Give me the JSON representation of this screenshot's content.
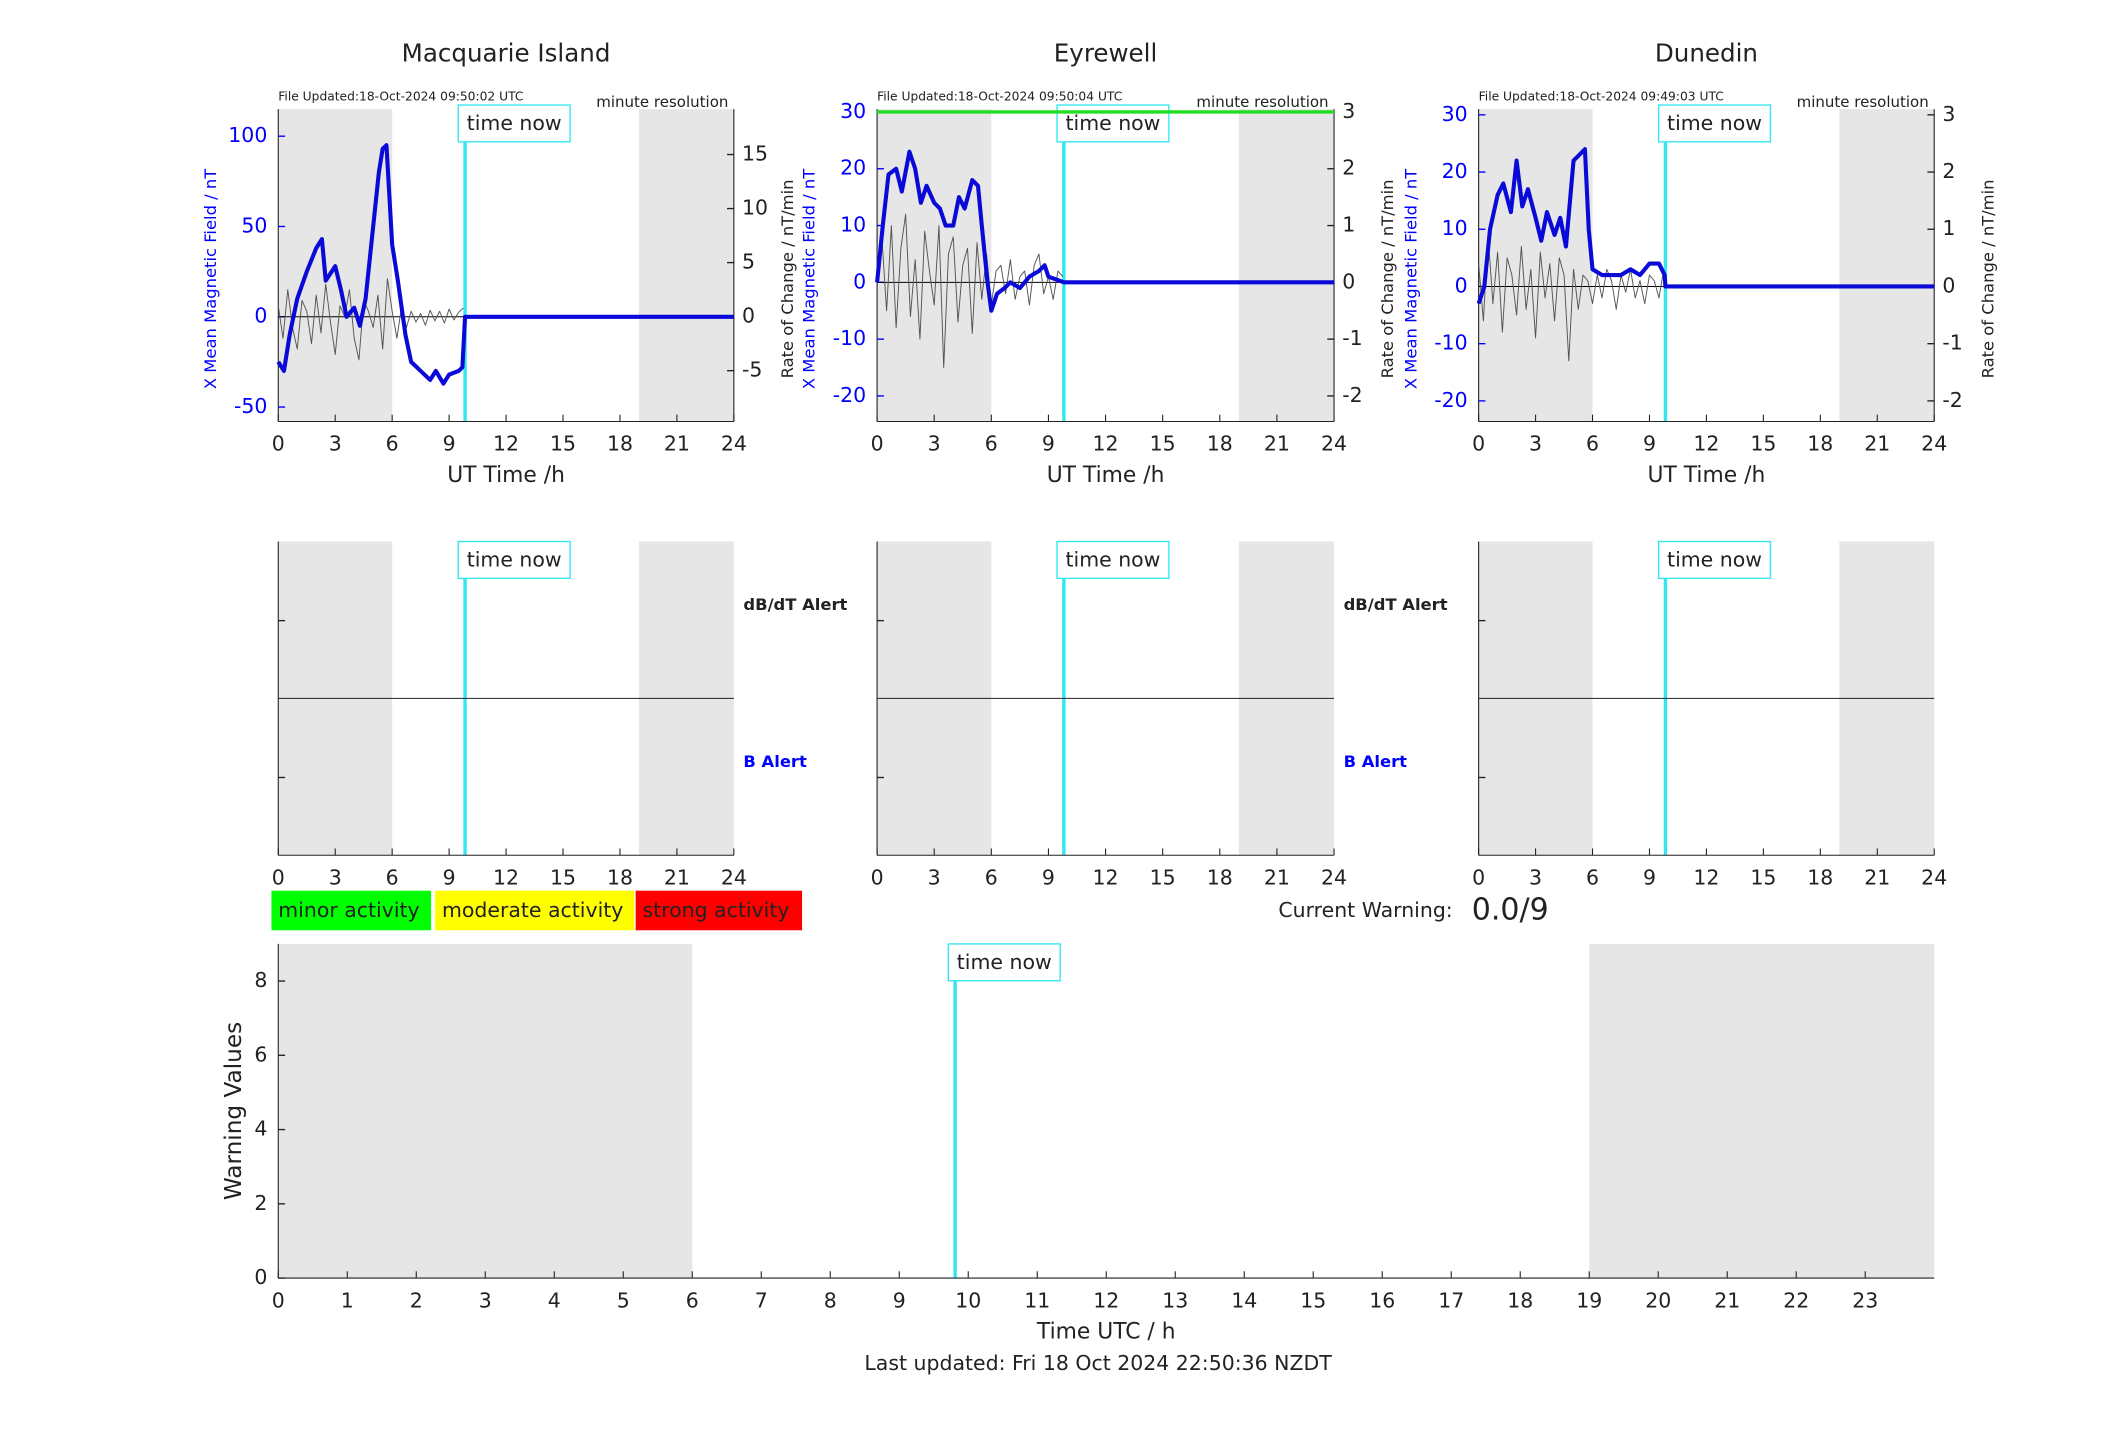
{
  "chart_data": [
    {
      "type": "line",
      "title": "Macquarie Island",
      "file_updated": "File Updated:18-Oct-2024 09:50:02 UTC",
      "resolution": "minute resolution",
      "time_now": 9.84,
      "time_now_label": "time now",
      "time_now_color": "#33e6f0",
      "shaded": [
        [
          0,
          6
        ],
        [
          19,
          24
        ]
      ],
      "shade_color": "#e6e6e6",
      "xlabel": "UT Time /h",
      "ylabel": "X Mean Magnetic Field / nT",
      "y2label": "Rate of Change / nT/min",
      "xlim": [
        0,
        24
      ],
      "xticks": [
        0,
        3,
        6,
        9,
        12,
        15,
        18,
        21,
        24
      ],
      "ylim": [
        -58,
        115
      ],
      "yticks": [
        -50,
        0,
        50,
        100
      ],
      "y_color": "#0000ff",
      "y2lim": [
        -9.7,
        19.2
      ],
      "y2ticks": [
        -5,
        0,
        5,
        10,
        15
      ],
      "series": [
        {
          "color": "#555555",
          "axis": "y2",
          "width": 0.7,
          "x": [
            0,
            0.25,
            0.5,
            0.75,
            1,
            1.25,
            1.5,
            1.75,
            2,
            2.25,
            2.5,
            2.75,
            3,
            3.25,
            3.5,
            3.75,
            4,
            4.25,
            4.5,
            4.75,
            5,
            5.25,
            5.5,
            5.75,
            6,
            6.25,
            6.5,
            6.75,
            7,
            7.25,
            7.5,
            7.75,
            8,
            8.25,
            8.5,
            8.75,
            9,
            9.25,
            9.5,
            9.75
          ],
          "values": [
            1,
            -2,
            2.5,
            -1,
            -3,
            1.5,
            0.5,
            -2.5,
            2,
            -1.5,
            3,
            -0.5,
            -3.5,
            1,
            0,
            2.5,
            -2,
            -4,
            1.5,
            0.5,
            -1,
            2,
            -3,
            3.5,
            0.5,
            -2,
            1,
            -1,
            0.5,
            -0.5,
            0.3,
            -0.8,
            0.6,
            -0.4,
            0.5,
            -0.6,
            0.7,
            -0.3,
            0.4,
            0.8
          ]
        },
        {
          "color": "#0a0ad8",
          "axis": "y",
          "width": 3,
          "x": [
            0,
            0.3,
            0.6,
            1,
            1.5,
            2,
            2.3,
            2.5,
            3,
            3.3,
            3.6,
            4,
            4.3,
            4.6,
            5,
            5.3,
            5.5,
            5.7,
            6,
            6.3,
            6.7,
            7,
            7.5,
            8,
            8.3,
            8.7,
            9,
            9.5,
            9.7,
            9.84,
            24
          ],
          "values": [
            -25,
            -30,
            -10,
            10,
            25,
            38,
            43,
            20,
            28,
            15,
            0,
            5,
            -5,
            10,
            50,
            80,
            93,
            95,
            40,
            20,
            -10,
            -25,
            -30,
            -35,
            -30,
            -37,
            -32,
            -30,
            -28,
            0,
            0
          ]
        }
      ]
    },
    {
      "type": "line",
      "title": "Eyrewell",
      "file_updated": "File Updated:18-Oct-2024 09:50:04 UTC",
      "resolution": "minute resolution",
      "time_now": 9.81,
      "time_now_label": "time now",
      "time_now_color": "#33e6f0",
      "shaded": [
        [
          0,
          6
        ],
        [
          19,
          24
        ]
      ],
      "shade_color": "#e6e6e6",
      "xlabel": "UT Time /h",
      "ylabel": "X Mean Magnetic Field / nT",
      "y2label": "Rate of Change / nT/min",
      "xlim": [
        0,
        24
      ],
      "xticks": [
        0,
        3,
        6,
        9,
        12,
        15,
        18,
        21,
        24
      ],
      "ylim": [
        -24.5,
        30.5
      ],
      "yticks": [
        -20,
        -10,
        0,
        10,
        20,
        30
      ],
      "y_color": "#0000ff",
      "y2lim": [
        -2.45,
        3.05
      ],
      "y2ticks": [
        -2,
        -1,
        0,
        1,
        2,
        3
      ],
      "threshold": 30,
      "threshold_color": "#22dd22",
      "series": [
        {
          "color": "#555555",
          "axis": "y2",
          "width": 0.7,
          "x": [
            0,
            0.25,
            0.5,
            0.75,
            1,
            1.25,
            1.5,
            1.75,
            2,
            2.25,
            2.5,
            2.75,
            3,
            3.25,
            3.5,
            3.75,
            4,
            4.25,
            4.5,
            4.75,
            5,
            5.25,
            5.5,
            5.75,
            6,
            6.25,
            6.5,
            6.75,
            7,
            7.25,
            7.5,
            7.75,
            8,
            8.25,
            8.5,
            8.75,
            9,
            9.25,
            9.5,
            9.75
          ],
          "values": [
            0.3,
            0.8,
            -0.5,
            1,
            -0.8,
            0.6,
            1.2,
            -0.6,
            0.4,
            -1,
            0.9,
            0.2,
            -0.4,
            1,
            -1.5,
            0.5,
            0.8,
            -0.7,
            0.3,
            0.6,
            -0.9,
            0.7,
            -0.3,
            0.5,
            -0.4,
            0.2,
            0.3,
            -0.2,
            0.4,
            -0.3,
            0.1,
            0.2,
            -0.4,
            0.3,
            0.5,
            -0.2,
            0.1,
            -0.3,
            0.2,
            0.1
          ]
        },
        {
          "color": "#0a0ad8",
          "axis": "y",
          "width": 3,
          "x": [
            0,
            0.3,
            0.6,
            1,
            1.3,
            1.7,
            2,
            2.3,
            2.6,
            3,
            3.3,
            3.6,
            4,
            4.3,
            4.6,
            5,
            5.3,
            5.5,
            5.8,
            6,
            6.3,
            6.7,
            7,
            7.5,
            8,
            8.5,
            8.8,
            9,
            9.81,
            24
          ],
          "values": [
            0,
            10,
            19,
            20,
            16,
            23,
            20,
            14,
            17,
            14,
            13,
            10,
            10,
            15,
            13,
            18,
            17,
            10,
            0,
            -5,
            -2,
            -1,
            0,
            -1,
            1,
            2,
            3,
            1,
            0,
            0
          ]
        }
      ]
    },
    {
      "type": "line",
      "title": "Dunedin",
      "file_updated": "File Updated:18-Oct-2024 09:49:03 UTC",
      "resolution": "minute resolution",
      "time_now": 9.84,
      "time_now_label": "time now",
      "time_now_color": "#33e6f0",
      "shaded": [
        [
          0,
          6
        ],
        [
          19,
          24
        ]
      ],
      "shade_color": "#e6e6e6",
      "xlabel": "UT Time /h",
      "ylabel": "X Mean Magnetic Field / nT",
      "y2label": "Rate of Change / nT/min",
      "xlim": [
        0,
        24
      ],
      "xticks": [
        0,
        3,
        6,
        9,
        12,
        15,
        18,
        21,
        24
      ],
      "ylim": [
        -23.6,
        31
      ],
      "yticks": [
        -20,
        -10,
        0,
        10,
        20,
        30
      ],
      "y_color": "#0000ff",
      "y2lim": [
        -2.36,
        3.1
      ],
      "y2ticks": [
        -2,
        -1,
        0,
        1,
        2,
        3
      ],
      "series": [
        {
          "color": "#555555",
          "axis": "y2",
          "width": 0.7,
          "x": [
            0,
            0.25,
            0.5,
            0.75,
            1,
            1.25,
            1.5,
            1.75,
            2,
            2.25,
            2.5,
            2.75,
            3,
            3.25,
            3.5,
            3.75,
            4,
            4.25,
            4.5,
            4.75,
            5,
            5.25,
            5.5,
            5.75,
            6,
            6.25,
            6.5,
            6.75,
            7,
            7.25,
            7.5,
            7.75,
            8,
            8.25,
            8.5,
            8.75,
            9,
            9.25,
            9.5,
            9.75
          ],
          "values": [
            0.4,
            -0.6,
            0.9,
            -0.3,
            0.6,
            -0.8,
            0.5,
            0.2,
            -0.5,
            0.7,
            -0.4,
            0.3,
            -0.9,
            0.6,
            -0.2,
            0.4,
            -0.6,
            0.5,
            0.2,
            -1.3,
            0.3,
            -0.4,
            0.2,
            0.1,
            -0.3,
            0.2,
            -0.2,
            0.3,
            0.1,
            -0.4,
            0.2,
            -0.1,
            0.3,
            -0.2,
            0.1,
            -0.3,
            0.2,
            0.1,
            -0.2,
            0.3
          ]
        },
        {
          "color": "#0a0ad8",
          "axis": "y",
          "width": 3,
          "x": [
            0,
            0.3,
            0.6,
            1,
            1.3,
            1.7,
            2,
            2.3,
            2.6,
            3,
            3.3,
            3.6,
            4,
            4.3,
            4.6,
            5,
            5.3,
            5.6,
            5.8,
            6,
            6.5,
            7,
            7.5,
            8,
            8.5,
            9,
            9.5,
            9.8,
            9.84,
            24
          ],
          "values": [
            -3,
            0,
            10,
            16,
            18,
            13,
            22,
            14,
            17,
            12,
            8,
            13,
            9,
            12,
            7,
            22,
            23,
            24,
            10,
            3,
            2,
            2,
            2,
            3,
            2,
            4,
            4,
            2,
            0,
            0
          ]
        }
      ]
    },
    {
      "type": "alert",
      "time_now": 9.84,
      "time_now_label": "time now",
      "time_now_color": "#33e6f0",
      "shaded": [
        [
          0,
          6
        ],
        [
          19,
          24
        ]
      ],
      "shade_color": "#e6e6e6",
      "xlim": [
        0,
        24
      ],
      "xticks": [
        0,
        3,
        6,
        9,
        12,
        15,
        18,
        21,
        24
      ],
      "db_label": "dB/dT Alert",
      "b_label": "B Alert",
      "b_color": "#0000ff"
    },
    {
      "type": "alert",
      "time_now": 9.81,
      "time_now_label": "time now",
      "time_now_color": "#33e6f0",
      "shaded": [
        [
          0,
          6
        ],
        [
          19,
          24
        ]
      ],
      "shade_color": "#e6e6e6",
      "xlim": [
        0,
        24
      ],
      "xticks": [
        0,
        3,
        6,
        9,
        12,
        15,
        18,
        21,
        24
      ],
      "db_label": "dB/dT Alert",
      "b_label": "B Alert",
      "b_color": "#0000ff"
    },
    {
      "type": "alert",
      "time_now": 9.84,
      "time_now_label": "time now",
      "time_now_color": "#33e6f0",
      "shaded": [
        [
          0,
          6
        ],
        [
          19,
          24
        ]
      ],
      "shade_color": "#e6e6e6",
      "xlim": [
        0,
        24
      ],
      "xticks": [
        0,
        3,
        6,
        9,
        12,
        15,
        18,
        21,
        24
      ]
    },
    {
      "type": "warning",
      "time_now": 9.81,
      "time_now_label": "time now",
      "time_now_color": "#33e6f0",
      "shaded": [
        [
          0,
          6
        ],
        [
          19,
          24
        ]
      ],
      "shade_color": "#e6e6e6",
      "xlabel": "Time UTC / h",
      "ylabel": "Warning Values",
      "xlim": [
        0,
        24
      ],
      "xticks": [
        0,
        1,
        2,
        3,
        4,
        5,
        6,
        7,
        8,
        9,
        10,
        11,
        12,
        13,
        14,
        15,
        16,
        17,
        18,
        19,
        20,
        21,
        22,
        23
      ],
      "ylim": [
        0,
        9
      ],
      "yticks": [
        0,
        2,
        4,
        6,
        8
      ],
      "activity_levels": [
        {
          "label": "minor activity",
          "color": "#00ff00"
        },
        {
          "label": "moderate activity",
          "color": "#ffff00"
        },
        {
          "label": "strong activity",
          "color": "#ff0000"
        }
      ],
      "current_warning_label": "Current Warning:",
      "current_warning": "0.0/9",
      "footer": "Last updated: Fri 18 Oct 2024 22:50:36 NZDT"
    }
  ]
}
